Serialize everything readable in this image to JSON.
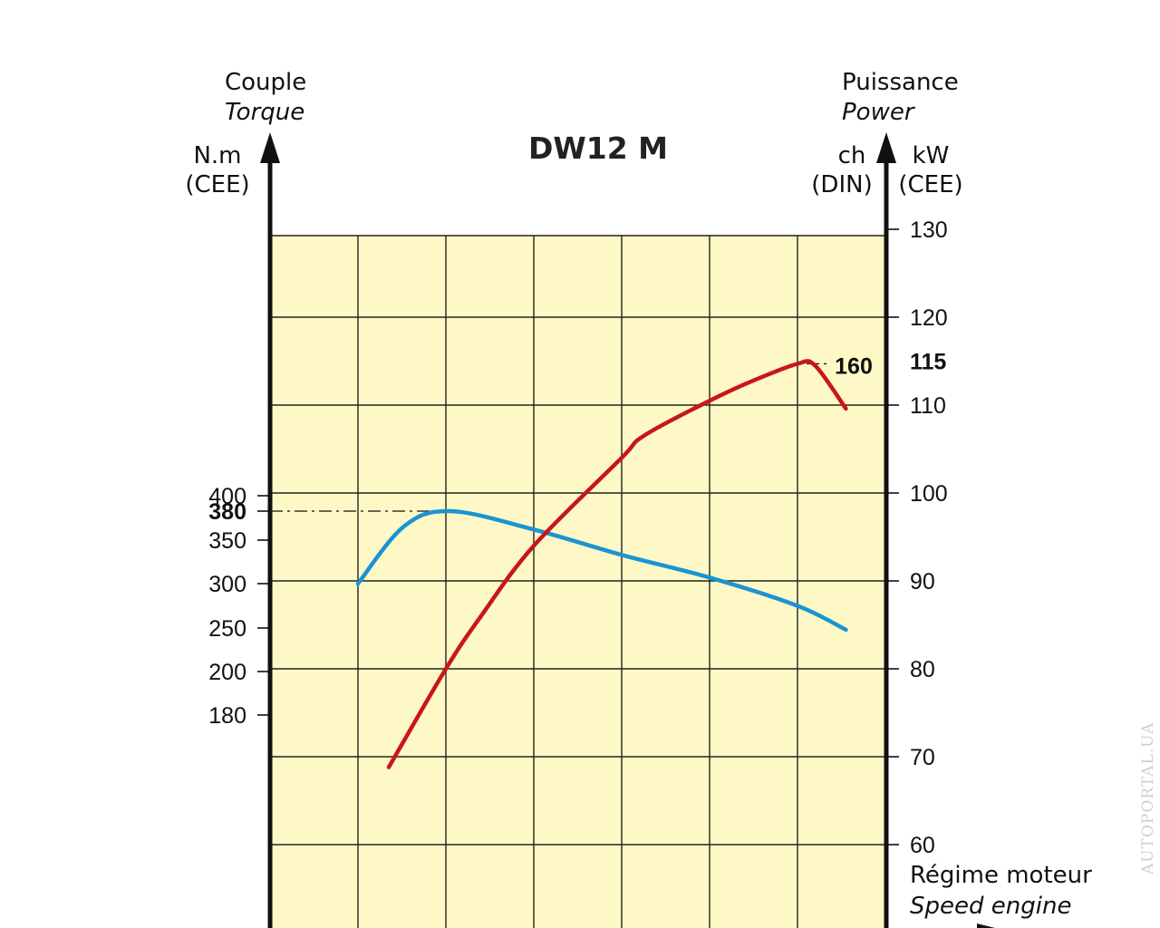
{
  "chart_data": {
    "type": "line",
    "title": "DW12 M",
    "left_axis": {
      "label": "Couple",
      "label_en": "Torque",
      "unit": "N.m",
      "unit_note": "(CEE)",
      "ticks": [
        "400",
        "380",
        "350",
        "300",
        "250",
        "200",
        "180"
      ],
      "highlight": "380"
    },
    "right_axis_ch": {
      "label": "Puissance",
      "label_en": "Power",
      "unit": "ch",
      "unit_note": "(DIN)",
      "highlight": "160"
    },
    "right_axis_kw": {
      "unit": "kW",
      "unit_note": "(CEE)",
      "ticks": [
        "130",
        "120",
        "115",
        "110",
        "100",
        "90",
        "80",
        "70",
        "60"
      ],
      "range": [
        60,
        130
      ],
      "highlight": "115"
    },
    "x_axis": {
      "label": "Régime moteur",
      "label_en": "Speed engine",
      "columns": 7
    },
    "series": [
      {
        "key": "torque",
        "color": "#1a94d4",
        "points": [
          [
            1,
            300
          ],
          [
            1.52,
            364
          ],
          [
            2.05,
            380
          ],
          [
            3,
            361
          ],
          [
            4,
            333
          ],
          [
            5,
            307
          ],
          [
            6,
            275
          ],
          [
            6.55,
            248
          ]
        ]
      },
      {
        "key": "power",
        "color": "#c8161d",
        "points": [
          [
            1.35,
            68.8
          ],
          [
            2,
            80
          ],
          [
            2.4,
            86
          ],
          [
            3,
            94
          ],
          [
            4,
            104
          ],
          [
            4.25,
            106.5
          ],
          [
            5,
            110.5
          ],
          [
            5.5,
            112.8
          ],
          [
            6,
            114.7
          ],
          [
            6.2,
            114.5
          ],
          [
            6.55,
            109.6
          ]
        ]
      }
    ]
  },
  "watermark": "AUTOPORTAL.UA",
  "colors": {
    "plot_background": "#fdf8c5",
    "grid": "#222222",
    "axis": "#111111"
  }
}
